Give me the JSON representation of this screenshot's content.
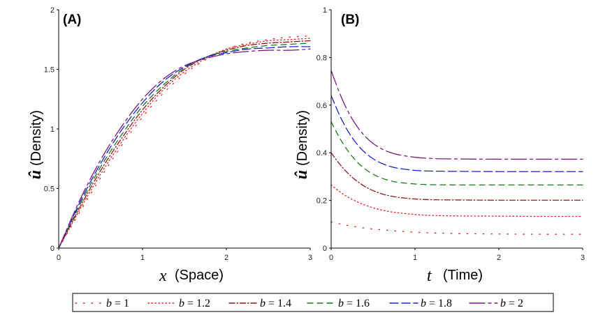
{
  "chart_data": [
    {
      "type": "line",
      "panel_label": "(A)",
      "xlabel_var": "x",
      "xlabel_text": "(Space)",
      "ylabel_var": "û",
      "ylabel_text": "(Density)",
      "xlim": [
        0,
        3
      ],
      "ylim": [
        0,
        2
      ],
      "xticks": [
        0,
        1,
        2,
        3
      ],
      "yticks": [
        0,
        0.5,
        1,
        1.5,
        2
      ],
      "xtick_labels": [
        "0",
        "1",
        "2",
        "3"
      ],
      "ytick_labels": [
        "0",
        "0.5",
        "1",
        "1.5",
        "2"
      ],
      "grid": false,
      "x": [
        0,
        0.25,
        0.5,
        0.75,
        1.0,
        1.25,
        1.5,
        1.75,
        2.0,
        2.25,
        2.5,
        2.75,
        3.0
      ],
      "series": [
        {
          "name": "b = 1",
          "values": [
            0,
            0.3,
            0.59,
            0.86,
            1.1,
            1.3,
            1.46,
            1.58,
            1.67,
            1.72,
            1.75,
            1.77,
            1.78
          ]
        },
        {
          "name": "b = 1.2",
          "values": [
            0,
            0.32,
            0.62,
            0.89,
            1.13,
            1.33,
            1.48,
            1.59,
            1.67,
            1.71,
            1.74,
            1.75,
            1.76
          ]
        },
        {
          "name": "b = 1.4",
          "values": [
            0,
            0.34,
            0.65,
            0.92,
            1.16,
            1.35,
            1.5,
            1.6,
            1.66,
            1.7,
            1.72,
            1.73,
            1.74
          ]
        },
        {
          "name": "b = 1.6",
          "values": [
            0,
            0.36,
            0.68,
            0.95,
            1.19,
            1.37,
            1.51,
            1.6,
            1.65,
            1.68,
            1.7,
            1.71,
            1.72
          ]
        },
        {
          "name": "b = 1.8",
          "values": [
            0,
            0.38,
            0.71,
            0.99,
            1.22,
            1.4,
            1.52,
            1.6,
            1.64,
            1.67,
            1.68,
            1.69,
            1.69
          ]
        },
        {
          "name": "b = 2",
          "values": [
            0,
            0.4,
            0.74,
            1.02,
            1.25,
            1.42,
            1.53,
            1.59,
            1.63,
            1.65,
            1.66,
            1.66,
            1.67
          ]
        }
      ]
    },
    {
      "type": "line",
      "panel_label": "(B)",
      "xlabel_var": "t",
      "xlabel_text": "(Time)",
      "ylabel_var": "û",
      "ylabel_text": "(Density)",
      "xlim": [
        0,
        3
      ],
      "ylim": [
        0,
        1
      ],
      "xticks": [
        0,
        1,
        2,
        3
      ],
      "yticks": [
        0,
        0.2,
        0.4,
        0.6,
        0.8,
        1
      ],
      "xtick_labels": [
        "0",
        "1",
        "2",
        "3"
      ],
      "ytick_labels": [
        "0",
        "0.2",
        "0.4",
        "0.6",
        "0.8",
        "1"
      ],
      "grid": false,
      "x": [
        0,
        0.1,
        0.2,
        0.3,
        0.4,
        0.5,
        0.6,
        0.7,
        0.8,
        1.0,
        1.2,
        1.5,
        2.0,
        2.5,
        3.0
      ],
      "series": [
        {
          "name": "b = 1",
          "values": [
            0.11,
            0.102,
            0.095,
            0.089,
            0.084,
            0.08,
            0.077,
            0.074,
            0.071,
            0.067,
            0.064,
            0.061,
            0.059,
            0.058,
            0.058
          ]
        },
        {
          "name": "b = 1.2",
          "values": [
            0.265,
            0.237,
            0.214,
            0.196,
            0.181,
            0.169,
            0.16,
            0.153,
            0.148,
            0.141,
            0.137,
            0.135,
            0.134,
            0.133,
            0.133
          ]
        },
        {
          "name": "b = 1.4",
          "values": [
            0.4,
            0.353,
            0.314,
            0.283,
            0.259,
            0.241,
            0.228,
            0.219,
            0.213,
            0.206,
            0.203,
            0.202,
            0.201,
            0.201,
            0.201
          ]
        },
        {
          "name": "b = 1.6",
          "values": [
            0.53,
            0.463,
            0.408,
            0.365,
            0.333,
            0.31,
            0.294,
            0.283,
            0.276,
            0.269,
            0.266,
            0.265,
            0.265,
            0.265,
            0.265
          ]
        },
        {
          "name": "b = 1.8",
          "values": [
            0.64,
            0.558,
            0.491,
            0.44,
            0.402,
            0.375,
            0.356,
            0.343,
            0.335,
            0.326,
            0.323,
            0.322,
            0.321,
            0.321,
            0.321
          ]
        },
        {
          "name": "b = 2",
          "values": [
            0.745,
            0.651,
            0.574,
            0.515,
            0.471,
            0.439,
            0.417,
            0.402,
            0.392,
            0.381,
            0.376,
            0.374,
            0.373,
            0.373,
            0.373
          ]
        }
      ]
    }
  ],
  "legend": {
    "items": [
      {
        "var": "b",
        "eq": " = 1",
        "color": "#e8201e",
        "dash": "1.5 10"
      },
      {
        "var": "b",
        "eq": " = 1.2",
        "color": "#e8201e",
        "dash": "1.5 3.5"
      },
      {
        "var": "b",
        "eq": " = 1.4",
        "color": "#8b1a1a",
        "dash": "8 3 1.5 3"
      },
      {
        "var": "b",
        "eq": " = 1.6",
        "color": "#1a7a1a",
        "dash": "8 6"
      },
      {
        "var": "b",
        "eq": " = 1.8",
        "color": "#1a24d4",
        "dash": "12 5"
      },
      {
        "var": "b",
        "eq": " = 2",
        "color": "#7a1a80",
        "dash": "22 5 4 5"
      }
    ]
  }
}
